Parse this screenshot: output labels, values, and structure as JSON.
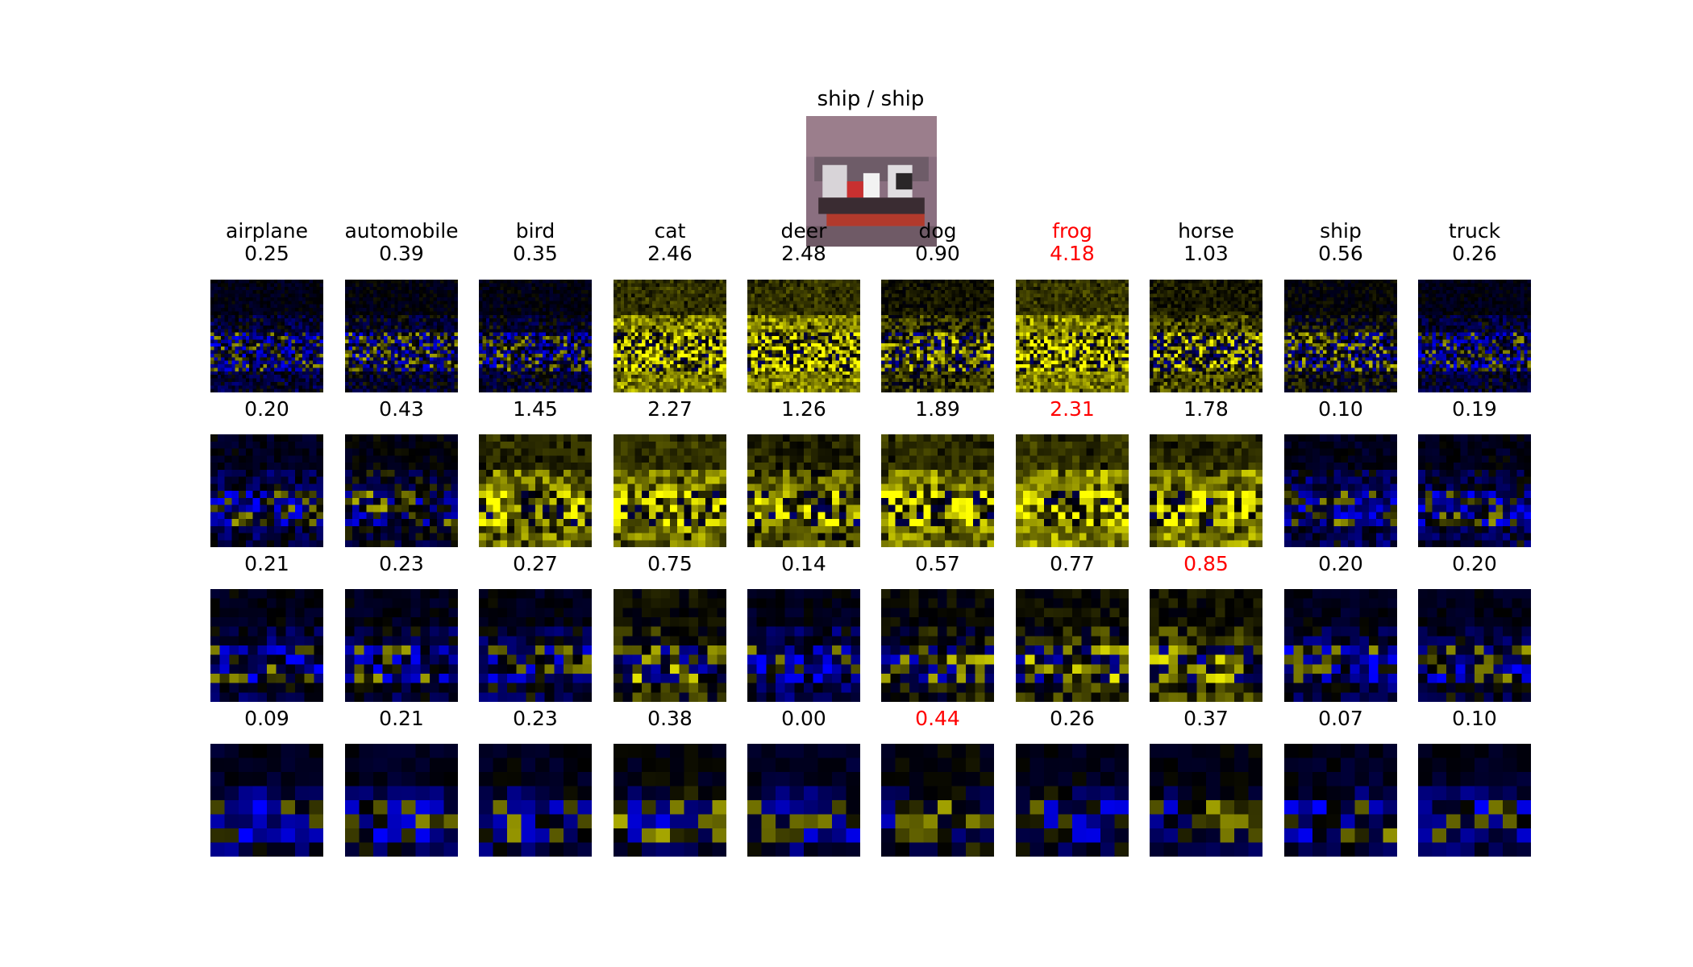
{
  "title": "ship / ship",
  "highlight_color": "#ff0000",
  "text_color": "#000000",
  "colormap": {
    "negative": "#0000ff",
    "zero": "#000000",
    "positive": "#ffff00"
  },
  "chart_data": {
    "type": "heatmap",
    "classes": [
      "airplane",
      "automobile",
      "bird",
      "cat",
      "deer",
      "dog",
      "frog",
      "horse",
      "ship",
      "truck"
    ],
    "rows": [
      {
        "values": [
          "0.25",
          "0.39",
          "0.35",
          "2.46",
          "2.48",
          "0.90",
          "4.18",
          "1.03",
          "0.56",
          "0.26"
        ],
        "highlight_index": 6,
        "grid": 32
      },
      {
        "values": [
          "0.20",
          "0.43",
          "1.45",
          "2.27",
          "1.26",
          "1.89",
          "2.31",
          "1.78",
          "0.10",
          "0.19"
        ],
        "highlight_index": 6,
        "grid": 16
      },
      {
        "values": [
          "0.21",
          "0.23",
          "0.27",
          "0.75",
          "0.14",
          "0.57",
          "0.77",
          "0.85",
          "0.20",
          "0.20"
        ],
        "highlight_index": 7,
        "grid": 12
      },
      {
        "values": [
          "0.09",
          "0.21",
          "0.23",
          "0.38",
          "0.00",
          "0.44",
          "0.26",
          "0.37",
          "0.07",
          "0.10"
        ],
        "highlight_index": 5,
        "grid": 8
      }
    ]
  }
}
